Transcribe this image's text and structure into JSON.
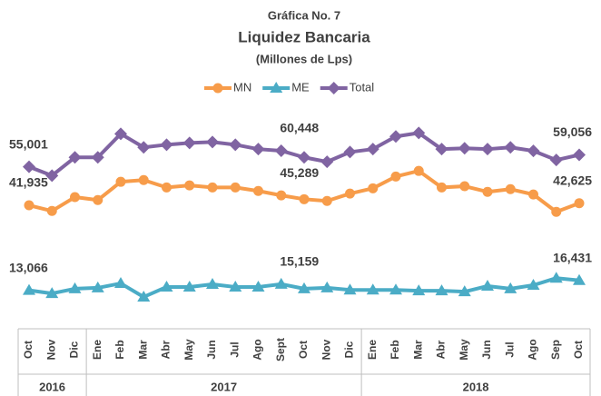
{
  "chart_data": {
    "type": "line",
    "title": "Gráfica No. 7",
    "subtitle": "Liquidez Bancaria",
    "note": "(Millones de Lps)",
    "categories": [
      "Oct",
      "Nov",
      "Dic",
      "Ene",
      "Feb",
      "Mar",
      "Abr",
      "May",
      "Jun",
      "Jul",
      "Ago",
      "Sept",
      "Oct",
      "Nov",
      "Dic",
      "Ene",
      "Feb",
      "Mar",
      "Abr",
      "May",
      "Jun",
      "Jul",
      "Ago",
      "Sep",
      "Oct"
    ],
    "groups": [
      {
        "label": "2016",
        "count": 3
      },
      {
        "label": "2017",
        "count": 12
      },
      {
        "label": "2018",
        "count": 10
      }
    ],
    "ylim": [
      0,
      70000
    ],
    "legend": "top",
    "series": [
      {
        "name": "MN",
        "color": "#f79c4a",
        "marker": "circle",
        "values": [
          41935,
          40000,
          44700,
          43700,
          49900,
          50500,
          48000,
          48700,
          48000,
          48000,
          46800,
          45289,
          44000,
          43400,
          45900,
          47700,
          51700,
          53600,
          48000,
          48400,
          46500,
          47400,
          45600,
          39700,
          42625
        ],
        "value_labels": [
          "41,935",
          null,
          null,
          null,
          null,
          null,
          null,
          null,
          null,
          null,
          null,
          "45,289",
          null,
          null,
          null,
          null,
          null,
          null,
          null,
          null,
          null,
          null,
          null,
          null,
          "42,625"
        ]
      },
      {
        "name": "ME",
        "color": "#4bacc6",
        "marker": "triangle",
        "values": [
          13066,
          12000,
          13600,
          13900,
          15400,
          10800,
          14200,
          14200,
          15100,
          14200,
          14200,
          15159,
          13600,
          13900,
          13200,
          13200,
          13200,
          12900,
          12900,
          12600,
          14500,
          13600,
          14800,
          17200,
          16431
        ],
        "value_labels": [
          "13,066",
          null,
          null,
          null,
          null,
          null,
          null,
          null,
          null,
          null,
          null,
          "15,159",
          null,
          null,
          null,
          null,
          null,
          null,
          null,
          null,
          null,
          null,
          null,
          null,
          "16,431"
        ]
      },
      {
        "name": "Total",
        "color": "#8064a2",
        "marker": "diamond",
        "values": [
          55001,
          52000,
          58200,
          58200,
          66200,
          61600,
          62500,
          63100,
          63400,
          62500,
          61000,
          60448,
          58200,
          56700,
          60000,
          61000,
          65300,
          66500,
          61000,
          61300,
          61000,
          61600,
          60400,
          57300,
          59056
        ],
        "value_labels": [
          "55,001",
          null,
          null,
          null,
          null,
          null,
          null,
          null,
          null,
          null,
          null,
          "60,448",
          null,
          null,
          null,
          null,
          null,
          null,
          null,
          null,
          null,
          null,
          null,
          null,
          "59,056"
        ]
      }
    ]
  }
}
